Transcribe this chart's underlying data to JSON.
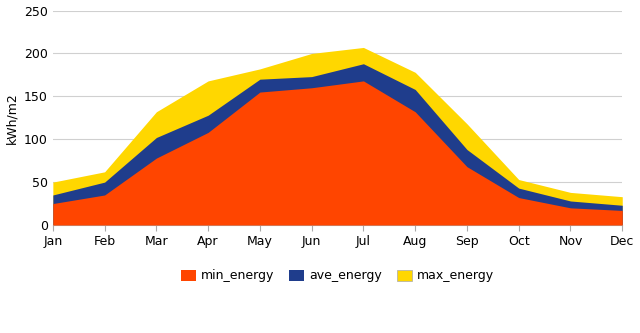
{
  "months": [
    "Jan",
    "Feb",
    "Mar",
    "Apr",
    "May",
    "Jun",
    "Jul",
    "Aug",
    "Sep",
    "Oct",
    "Nov",
    "Dec"
  ],
  "min_energy": [
    25,
    35,
    78,
    108,
    155,
    160,
    168,
    132,
    68,
    32,
    20,
    17
  ],
  "ave_energy": [
    35,
    50,
    102,
    128,
    170,
    173,
    188,
    158,
    88,
    43,
    28,
    23
  ],
  "max_energy": [
    50,
    62,
    132,
    168,
    182,
    200,
    207,
    178,
    118,
    53,
    38,
    33
  ],
  "min_color": "#FF4500",
  "ave_color": "#1F3D8C",
  "max_color": "#FFD700",
  "ylabel": "kWh/m2",
  "ylim": [
    0,
    250
  ],
  "yticks": [
    0,
    50,
    100,
    150,
    200,
    250
  ],
  "background_color": "#ffffff",
  "grid_color": "#d0d0d0",
  "legend_labels": [
    "min_energy",
    "ave_energy",
    "max_energy"
  ]
}
